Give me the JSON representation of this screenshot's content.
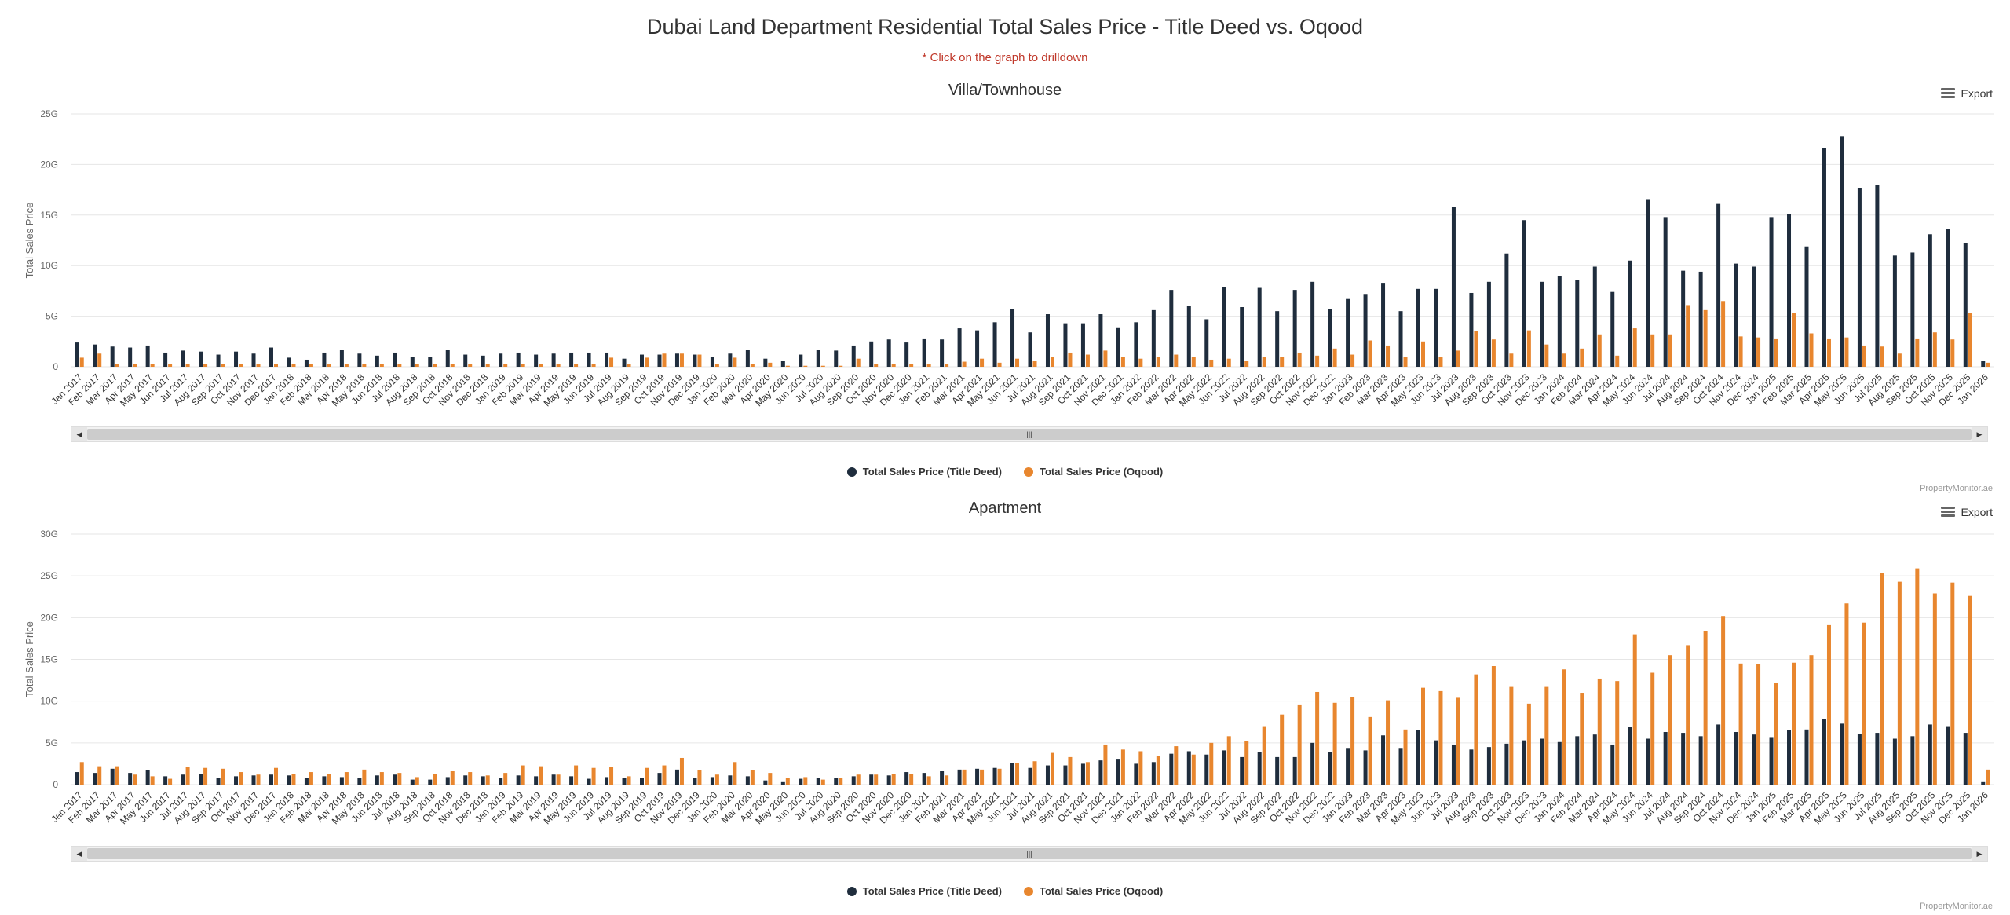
{
  "page": {
    "title": "Dubai Land Department Residential Total Sales Price - Title Deed vs. Oqood",
    "subtitle": "* Click on the graph to drilldown"
  },
  "colors": {
    "title_deed": "#1f2d3d",
    "oqood": "#e8862e"
  },
  "controls": {
    "export_label": "Export",
    "menu_icon": "hamburger-menu-icon",
    "scroll_thumb_glyph": "|||",
    "scroll_left_glyph": "◀",
    "scroll_right_glyph": "▶",
    "credit": "PropertyMonitor.ae"
  },
  "legend": {
    "title_deed": "Total Sales Price (Title Deed)",
    "oqood": "Total Sales Price (Oqood)"
  },
  "chart_data": [
    {
      "type": "bar",
      "title": "Villa/Townhouse",
      "ylabel": "Total Sales Price",
      "ylim": [
        0,
        25
      ],
      "yticks": [
        "0",
        "5G",
        "10G",
        "15G",
        "20G",
        "25G"
      ],
      "categories": [
        "Jan 2017",
        "Feb 2017",
        "Mar 2017",
        "Apr 2017",
        "May 2017",
        "Jun 2017",
        "Jul 2017",
        "Aug 2017",
        "Sep 2017",
        "Oct 2017",
        "Nov 2017",
        "Dec 2017",
        "Jan 2018",
        "Feb 2018",
        "Mar 2018",
        "Apr 2018",
        "May 2018",
        "Jun 2018",
        "Jul 2018",
        "Aug 2018",
        "Sep 2018",
        "Oct 2018",
        "Nov 2018",
        "Dec 2018",
        "Jan 2019",
        "Feb 2019",
        "Mar 2019",
        "Apr 2019",
        "May 2019",
        "Jun 2019",
        "Jul 2019",
        "Aug 2019",
        "Sep 2019",
        "Oct 2019",
        "Nov 2019",
        "Dec 2019",
        "Jan 2020",
        "Feb 2020",
        "Mar 2020",
        "Apr 2020",
        "May 2020",
        "Jun 2020",
        "Jul 2020",
        "Aug 2020",
        "Sep 2020",
        "Oct 2020",
        "Nov 2020",
        "Dec 2020",
        "Jan 2021",
        "Feb 2021",
        "Mar 2021",
        "Apr 2021",
        "May 2021",
        "Jun 2021",
        "Jul 2021",
        "Aug 2021",
        "Sep 2021",
        "Oct 2021",
        "Nov 2021",
        "Dec 2021",
        "Jan 2022",
        "Feb 2022",
        "Mar 2022",
        "Apr 2022",
        "May 2022",
        "Jun 2022",
        "Jul 2022",
        "Aug 2022",
        "Sep 2022",
        "Oct 2022",
        "Nov 2022",
        "Dec 2022",
        "Jan 2023",
        "Feb 2023",
        "Mar 2023",
        "Apr 2023",
        "May 2023",
        "Jun 2023",
        "Jul 2023",
        "Aug 2023",
        "Sep 2023",
        "Oct 2023",
        "Nov 2023",
        "Dec 2023",
        "Jan 2024",
        "Feb 2024",
        "Mar 2024",
        "Apr 2024",
        "May 2024",
        "Jun 2024",
        "Jul 2024",
        "Aug 2024",
        "Sep 2024",
        "Oct 2024",
        "Nov 2024",
        "Dec 2024",
        "Jan 2025",
        "Feb 2025",
        "Mar 2025",
        "Apr 2025",
        "May 2025",
        "Jun 2025",
        "Jul 2025",
        "Aug 2025",
        "Sep 2025",
        "Oct 2025",
        "Nov 2025",
        "Dec 2025",
        "Jan 2026"
      ],
      "xtick_labels": [
        "Jan 2017",
        "Feb 2017",
        "Mar 2017",
        "Apr 2017",
        "May 2017",
        "Jun 2017",
        "Jul 2017",
        "Aug 2017",
        "Sep 2017",
        "Oct 2017",
        "Nov 2017",
        "Dec 2017",
        "Jan 2018",
        "Feb 2018",
        "Mar 2018",
        "Apr 2018",
        "May 2018",
        "Jun 2018",
        "Jul 2018",
        "Aug 2018",
        "Sep 2018",
        "Oct 2018",
        "Nov 2018",
        "Dec 2018",
        "Jan 2019",
        "Feb 2019",
        "Mar 2019",
        "Apr 2019",
        "May 2019",
        "Jun 2019",
        "Jul 2019",
        "Aug 2019",
        "Sep 2019",
        "Oct 2019",
        "Nov 2019",
        "Dec 2019",
        "Jan 2020",
        "Feb 2020",
        "Mar 2020",
        "Apr 2020",
        "May 2020",
        "Jun 2020",
        "Jul 2020",
        "Aug 2020",
        "Sep 2020",
        "Oct 2020",
        "Nov 2020",
        "Dec 2020",
        "Jan 2021",
        "Feb 2021",
        "Mar 2021",
        "Apr 2021",
        "May 2021",
        "Jun 2021",
        "Jul 2021",
        "Aug 2021",
        "Sep 2021",
        "Oct 2021",
        "Nov 2021",
        "Dec 2021",
        "Jan 2022",
        "Feb 2022",
        "Mar 2022",
        "Apr 2022",
        "May 2022",
        "Jun 2022",
        "Jul 2022",
        "Aug 2022",
        "Sep 2022",
        "Oct 2022",
        "Nov 2022",
        "Dec 2022",
        "Jan 2023",
        "Feb 2023",
        "Mar 2023",
        "Apr 2023",
        "May 2023",
        "Jun 2023",
        "Jul 2023",
        "Aug 2023",
        "Sep 2023",
        "Oct 2023",
        "Nov 2023",
        "Dec 2023",
        "Jan 2024",
        "Feb 2024",
        "Mar 2024",
        "Apr 2024",
        "May 2024",
        "Jun 2024",
        "Jul 2024",
        "Aug 2024",
        "Sep 2024",
        "Oct 2024",
        "Nov 2024",
        "Dec 2024",
        "Jan 2025",
        "Feb 2025",
        "Mar 2025",
        "Apr 2025",
        "May 2025",
        "Jun 2025",
        "Jul 2025",
        "Aug 2025",
        "Sep 2025",
        "Oct 2025",
        "Nov 2025",
        "Dec 2025",
        "Jan 2026"
      ],
      "series": [
        {
          "name": "Total Sales Price (Title Deed)",
          "values": [
            2.4,
            2.2,
            2.0,
            1.9,
            2.1,
            1.4,
            1.6,
            1.5,
            1.2,
            1.5,
            1.3,
            1.9,
            0.9,
            0.7,
            1.4,
            1.7,
            1.3,
            1.1,
            1.4,
            1.0,
            1.0,
            1.7,
            1.2,
            1.1,
            1.3,
            1.4,
            1.2,
            1.3,
            1.4,
            1.4,
            1.4,
            0.8,
            1.2,
            1.2,
            1.3,
            1.2,
            1.0,
            1.3,
            1.7,
            0.8,
            0.6,
            1.2,
            1.7,
            1.6,
            2.1,
            2.5,
            2.7,
            2.4,
            2.8,
            2.7,
            3.8,
            3.6,
            4.4,
            5.7,
            3.4,
            5.2,
            4.3,
            4.3,
            5.2,
            3.9,
            4.4,
            5.6,
            7.6,
            6.0,
            4.7,
            7.9,
            5.9,
            7.8,
            5.5,
            7.6,
            8.4,
            5.7,
            6.7,
            7.2,
            8.3,
            5.5,
            7.7,
            7.7,
            15.8,
            7.3,
            8.4,
            11.2,
            14.5,
            8.4,
            9.0,
            8.6,
            9.9,
            7.4,
            10.5,
            16.5,
            14.8,
            9.5,
            9.4,
            16.1,
            10.2,
            9.9,
            14.8,
            15.1,
            11.9,
            21.6,
            22.8,
            17.7,
            18.0,
            11.0,
            11.3,
            13.1,
            13.6,
            12.2,
            0.6
          ]
        },
        {
          "name": "Total Sales Price (Oqood)",
          "values": [
            0.9,
            1.3,
            0.3,
            0.3,
            0.3,
            0.3,
            0.3,
            0.3,
            0.3,
            0.3,
            0.3,
            0.3,
            0.3,
            0.3,
            0.3,
            0.3,
            0.3,
            0.3,
            0.3,
            0.3,
            0.3,
            0.3,
            0.3,
            0.3,
            0.3,
            0.3,
            0.3,
            0.3,
            0.3,
            0.3,
            0.9,
            0.3,
            0.9,
            1.3,
            1.3,
            1.2,
            0.3,
            0.9,
            0.3,
            0.4,
            0.1,
            0.1,
            0.1,
            0.1,
            0.8,
            0.3,
            0.3,
            0.3,
            0.3,
            0.3,
            0.5,
            0.8,
            0.4,
            0.8,
            0.6,
            1.0,
            1.4,
            1.2,
            1.6,
            1.0,
            0.8,
            1.0,
            1.2,
            1.0,
            0.7,
            0.8,
            0.6,
            1.0,
            1.0,
            1.4,
            1.1,
            1.8,
            1.2,
            2.6,
            2.1,
            1.0,
            2.5,
            1.0,
            1.6,
            3.5,
            2.7,
            1.3,
            3.6,
            2.2,
            1.3,
            1.8,
            3.2,
            1.1,
            3.8,
            3.2,
            3.2,
            6.1,
            5.6,
            6.5,
            3.0,
            2.9,
            2.8,
            5.3,
            3.3,
            2.8,
            2.9,
            2.1,
            2.0,
            1.3,
            2.8,
            3.4,
            2.7,
            5.3,
            0.4
          ]
        }
      ]
    },
    {
      "type": "bar",
      "title": "Apartment",
      "ylabel": "Total Sales Price",
      "ylim": [
        0,
        30
      ],
      "yticks": [
        "0",
        "5G",
        "10G",
        "15G",
        "20G",
        "25G",
        "30G"
      ],
      "categories": [
        "Jan 2017",
        "Feb 2017",
        "Mar 2017",
        "Apr 2017",
        "May 2017",
        "Jun 2017",
        "Jul 2017",
        "Aug 2017",
        "Sep 2017",
        "Oct 2017",
        "Nov 2017",
        "Dec 2017",
        "Jan 2018",
        "Feb 2018",
        "Mar 2018",
        "Apr 2018",
        "May 2018",
        "Jun 2018",
        "Jul 2018",
        "Aug 2018",
        "Sep 2018",
        "Oct 2018",
        "Nov 2018",
        "Dec 2018",
        "Jan 2019",
        "Feb 2019",
        "Mar 2019",
        "Apr 2019",
        "May 2019",
        "Jun 2019",
        "Jul 2019",
        "Aug 2019",
        "Sep 2019",
        "Oct 2019",
        "Nov 2019",
        "Dec 2019",
        "Jan 2020",
        "Feb 2020",
        "Mar 2020",
        "Apr 2020",
        "May 2020",
        "Jun 2020",
        "Jul 2020",
        "Aug 2020",
        "Sep 2020",
        "Oct 2020",
        "Nov 2020",
        "Dec 2020",
        "Jan 2021",
        "Feb 2021",
        "Mar 2021",
        "Apr 2021",
        "May 2021",
        "Jun 2021",
        "Jul 2021",
        "Aug 2021",
        "Sep 2021",
        "Oct 2021",
        "Nov 2021",
        "Dec 2021",
        "Jan 2022",
        "Feb 2022",
        "Mar 2022",
        "Apr 2022",
        "May 2022",
        "Jun 2022",
        "Jul 2022",
        "Aug 2022",
        "Sep 2022",
        "Oct 2022",
        "Nov 2022",
        "Dec 2022",
        "Jan 2023",
        "Feb 2023",
        "Mar 2023",
        "Apr 2023",
        "May 2023",
        "Jun 2023",
        "Jul 2023",
        "Aug 2023",
        "Sep 2023",
        "Oct 2023",
        "Nov 2023",
        "Dec 2023",
        "Jan 2024",
        "Feb 2024",
        "Mar 2024",
        "Apr 2024",
        "May 2024",
        "Jun 2024",
        "Jul 2024",
        "Aug 2024",
        "Sep 2024",
        "Oct 2024",
        "Nov 2024",
        "Dec 2024",
        "Jan 2025",
        "Feb 2025",
        "Mar 2025",
        "Apr 2025",
        "May 2025",
        "Jun 2025",
        "Jul 2025",
        "Aug 2025",
        "Sep 2025",
        "Oct 2025",
        "Nov 2025",
        "Dec 2025",
        "Jan 2026"
      ],
      "xtick_labels": [
        "Jan 2017",
        "Feb 2017",
        "Mar 2017",
        "Apr 2017",
        "May 2017",
        "Jun 2017",
        "Jul 2017",
        "Aug 2017",
        "Sep 2017",
        "Oct 2017",
        "Nov 2017",
        "Dec 2017",
        "Jan 2018",
        "Feb 2018",
        "Mar 2018",
        "Apr 2018",
        "May 2018",
        "Jun 2018",
        "Jul 2018",
        "Aug 2018",
        "Sep 2018",
        "Oct 2018",
        "Nov 2018",
        "Dec 2018",
        "Jan 2019",
        "Feb 2019",
        "Mar 2019",
        "Apr 2019",
        "May 2019",
        "Jun 2019",
        "Jul 2019",
        "Aug 2019",
        "Sep 2019",
        "Oct 2019",
        "Nov 2019",
        "Dec 2019",
        "Jan 2020",
        "Feb 2020",
        "Mar 2020",
        "Apr 2020",
        "May 2020",
        "Jun 2020",
        "Jul 2020",
        "Aug 2020",
        "Sep 2020",
        "Oct 2020",
        "Nov 2020",
        "Dec 2020",
        "Jan 2021",
        "Feb 2021",
        "Mar 2021",
        "Apr 2021",
        "May 2021",
        "Jun 2021",
        "Jul 2021",
        "Aug 2021",
        "Sep 2021",
        "Oct 2021",
        "Nov 2021",
        "Dec 2021",
        "Jan 2022",
        "Feb 2022",
        "Mar 2022",
        "Apr 2022",
        "May 2022",
        "Jun 2022",
        "Jul 2022",
        "Aug 2022",
        "Sep 2022",
        "Oct 2022",
        "Nov 2022",
        "Dec 2022",
        "Jan 2023",
        "Feb 2023",
        "Mar 2023",
        "Apr 2023",
        "May 2023",
        "Jun 2023",
        "Jul 2023",
        "Aug 2023",
        "Sep 2023",
        "Oct 2023",
        "Nov 2023",
        "Dec 2023",
        "Jan 2024",
        "Feb 2024",
        "Mar 2024",
        "Apr 2024",
        "May 2024",
        "Jun 2024",
        "Jul 2024",
        "Aug 2024",
        "Sep 2024",
        "Oct 2024",
        "Nov 2024",
        "Dec 2024",
        "Jan 2025",
        "Feb 2025",
        "Mar 2025",
        "Apr 2025",
        "May 2025",
        "Jun 2025",
        "Jul 2025",
        "Aug 2025",
        "Sep 2025",
        "Oct 2025",
        "Nov 2025",
        "Dec 2025",
        "Jan 2026"
      ],
      "series": [
        {
          "name": "Total Sales Price (Title Deed)",
          "values": [
            1.5,
            1.4,
            1.9,
            1.4,
            1.7,
            1.0,
            1.2,
            1.3,
            0.8,
            1.0,
            1.1,
            1.2,
            1.1,
            0.8,
            1.0,
            0.9,
            0.8,
            1.1,
            1.2,
            0.6,
            0.6,
            0.9,
            1.1,
            1.0,
            0.8,
            1.1,
            1.0,
            1.2,
            1.0,
            0.7,
            0.9,
            0.8,
            0.8,
            1.4,
            1.8,
            0.8,
            0.9,
            1.1,
            1.0,
            0.5,
            0.3,
            0.7,
            0.8,
            0.8,
            1.0,
            1.2,
            1.1,
            1.5,
            1.4,
            1.6,
            1.8,
            1.9,
            2.0,
            2.6,
            2.0,
            2.3,
            2.3,
            2.5,
            2.9,
            3.0,
            2.5,
            2.7,
            3.7,
            4.0,
            3.6,
            4.1,
            3.3,
            3.9,
            3.3,
            3.3,
            5.0,
            3.9,
            4.3,
            4.1,
            5.9,
            4.3,
            6.5,
            5.3,
            4.8,
            4.2,
            4.5,
            4.9,
            5.3,
            5.5,
            5.1,
            5.8,
            6.0,
            4.8,
            6.9,
            5.5,
            6.3,
            6.2,
            5.8,
            7.2,
            6.3,
            6.0,
            5.6,
            6.5,
            6.6,
            7.9,
            7.3,
            6.1,
            6.2,
            5.5,
            5.8,
            7.2,
            7.0,
            6.2,
            0.3
          ]
        },
        {
          "name": "Total Sales Price (Oqood)",
          "values": [
            2.7,
            2.2,
            2.2,
            1.2,
            1.0,
            0.7,
            2.1,
            2.0,
            1.9,
            1.5,
            1.2,
            2.0,
            1.3,
            1.5,
            1.3,
            1.5,
            1.8,
            1.5,
            1.4,
            0.9,
            1.3,
            1.6,
            1.5,
            1.1,
            1.4,
            2.3,
            2.2,
            1.2,
            2.3,
            2.0,
            2.1,
            1.0,
            2.0,
            2.3,
            3.2,
            1.7,
            1.2,
            2.7,
            1.7,
            1.4,
            0.8,
            0.9,
            0.6,
            0.8,
            1.2,
            1.2,
            1.3,
            1.3,
            1.0,
            1.1,
            1.8,
            1.8,
            1.9,
            2.6,
            2.8,
            3.8,
            3.3,
            2.7,
            4.8,
            4.2,
            4.0,
            3.4,
            4.6,
            3.6,
            5.0,
            5.8,
            5.2,
            7.0,
            8.4,
            9.6,
            11.1,
            9.8,
            10.5,
            8.1,
            10.1,
            6.6,
            11.6,
            11.2,
            10.4,
            13.2,
            14.2,
            11.7,
            9.7,
            11.7,
            13.8,
            11.0,
            12.7,
            12.4,
            18.0,
            13.4,
            15.5,
            16.7,
            18.4,
            20.2,
            14.5,
            14.4,
            12.2,
            14.6,
            15.5,
            19.1,
            21.7,
            19.4,
            25.3,
            24.3,
            25.9,
            22.9,
            24.2,
            22.6,
            1.8
          ]
        }
      ]
    }
  ]
}
